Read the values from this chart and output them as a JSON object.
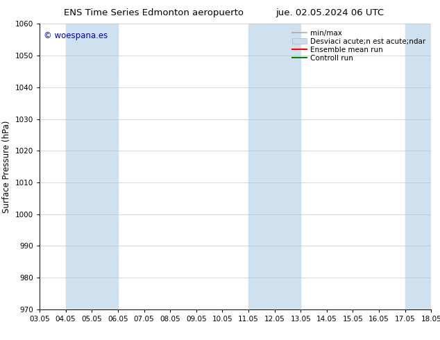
{
  "title_left": "ENS Time Series Edmonton aeropuerto",
  "title_right": "jue. 02.05.2024 06 UTC",
  "ylabel": "Surface Pressure (hPa)",
  "ylim": [
    970,
    1060
  ],
  "yticks": [
    970,
    980,
    990,
    1000,
    1010,
    1020,
    1030,
    1040,
    1050,
    1060
  ],
  "x_start": 3.05,
  "x_end": 18.05,
  "xtick_labels": [
    "03.05",
    "04.05",
    "05.05",
    "06.05",
    "07.05",
    "08.05",
    "09.05",
    "10.05",
    "11.05",
    "12.05",
    "13.05",
    "14.05",
    "15.05",
    "16.05",
    "17.05",
    "18.05"
  ],
  "xtick_positions": [
    3.05,
    4.05,
    5.05,
    6.05,
    7.05,
    8.05,
    9.05,
    10.05,
    11.05,
    12.05,
    13.05,
    14.05,
    15.05,
    16.05,
    17.05,
    18.05
  ],
  "shaded_bands": [
    {
      "x_start": 4.05,
      "x_end": 6.05
    },
    {
      "x_start": 11.05,
      "x_end": 13.05
    },
    {
      "x_start": 17.05,
      "x_end": 18.05
    }
  ],
  "shade_color": "#cfe0ef",
  "background_color": "#ffffff",
  "watermark_text": "© woespana.es",
  "watermark_color": "#0000bb",
  "legend_label_minmax": "min/max",
  "legend_label_desv": "Desviaci acute;n est acute;ndar",
  "legend_label_ensemble": "Ensemble mean run",
  "legend_label_control": "Controll run",
  "legend_color_minmax": "#aaaaaa",
  "legend_color_desv": "#c8dded",
  "legend_color_ensemble": "#ff0000",
  "legend_color_control": "#008800",
  "title_fontsize": 9.5,
  "tick_fontsize": 7.5,
  "ylabel_fontsize": 8.5,
  "legend_fontsize": 7.5,
  "watermark_fontsize": 8.5
}
